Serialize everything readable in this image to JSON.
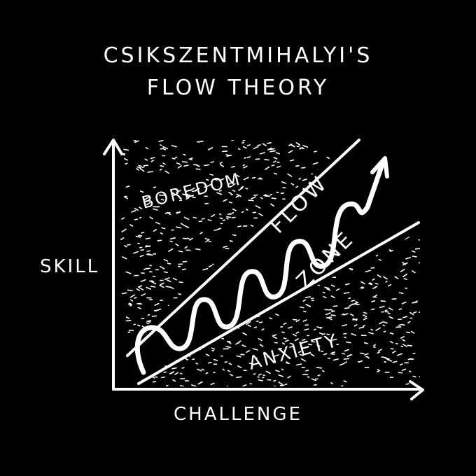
{
  "title": {
    "line1": "CSIKSZENTMIHALYI'S",
    "line2": "FLOW THEORY"
  },
  "axes": {
    "y_label": "SKILL",
    "x_label": "CHALLENGE"
  },
  "regions": {
    "boredom": "BOREDOM",
    "flow": "FLOW",
    "zone": "ZONE",
    "anxiety": "ANXIETY"
  },
  "colors": {
    "background": "#000000",
    "ink": "#ffffff"
  },
  "icons": {
    "y_axis_arrow": "arrow-up-icon",
    "x_axis_arrow": "arrow-right-icon",
    "flow_path_arrow": "arrow-up-right-icon"
  }
}
